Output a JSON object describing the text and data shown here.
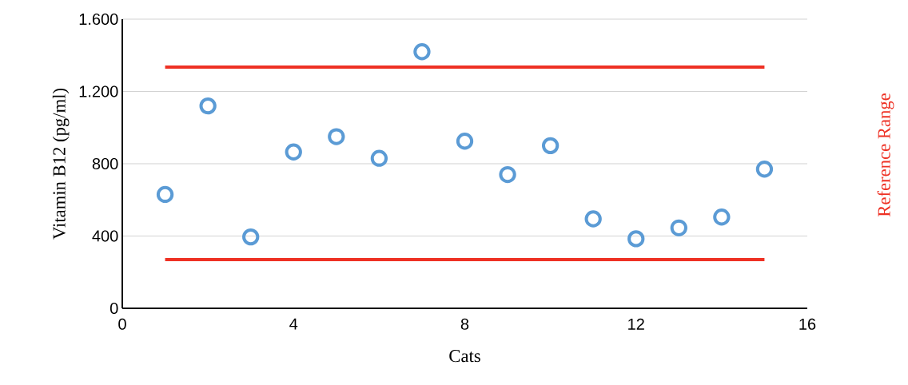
{
  "chart_data": {
    "type": "scatter",
    "xlabel": "Cats",
    "ylabel": "Vitamin B12 (pg/ml)",
    "xlim": [
      0,
      16
    ],
    "xticks": [
      0,
      4,
      8,
      12,
      16
    ],
    "ylim": [
      0,
      1600
    ],
    "yticks": [
      0,
      400,
      800,
      {
        "value": 1200,
        "label": "1.200"
      },
      {
        "value": 1600,
        "label": "1.600"
      }
    ],
    "grid": "y",
    "marker": "circle",
    "series": [
      {
        "color": "#5b9bd5",
        "x": [
          1,
          2,
          3,
          4,
          5,
          6,
          7,
          8,
          9,
          10,
          11,
          12,
          13,
          14,
          15
        ],
        "values": [
          630,
          1120,
          395,
          865,
          950,
          830,
          1420,
          925,
          740,
          900,
          495,
          385,
          445,
          505,
          770
        ]
      },
      {
        "type": "line",
        "name": "Reference Range",
        "color": "#ee3124",
        "marker": "none",
        "line_style": "solid",
        "x": [
          1,
          15
        ],
        "values": [
          1335,
          1335
        ]
      },
      {
        "type": "line",
        "color": "#ee3124",
        "marker": "none",
        "line_style": "solid",
        "x": [
          1,
          15
        ],
        "values": [
          270,
          270
        ]
      }
    ]
  }
}
